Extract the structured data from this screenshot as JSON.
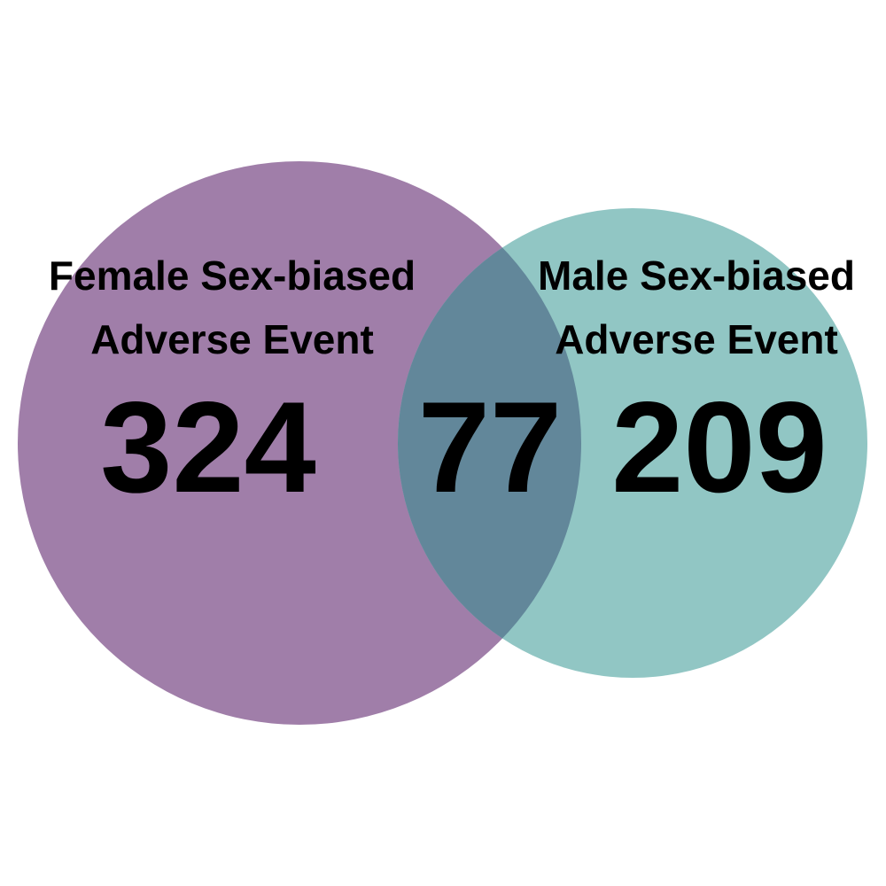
{
  "venn": {
    "left_set": {
      "label_line1": "Female Sex-biased",
      "label_line2": "Adverse Event",
      "only_count": "324",
      "color": "#a07ea9"
    },
    "right_set": {
      "label_line1": "Male Sex-biased",
      "label_line2": "Adverse Event",
      "only_count": "209",
      "color": "#91c6c4"
    },
    "overlap": {
      "count": "77",
      "color": "#62879a"
    }
  }
}
